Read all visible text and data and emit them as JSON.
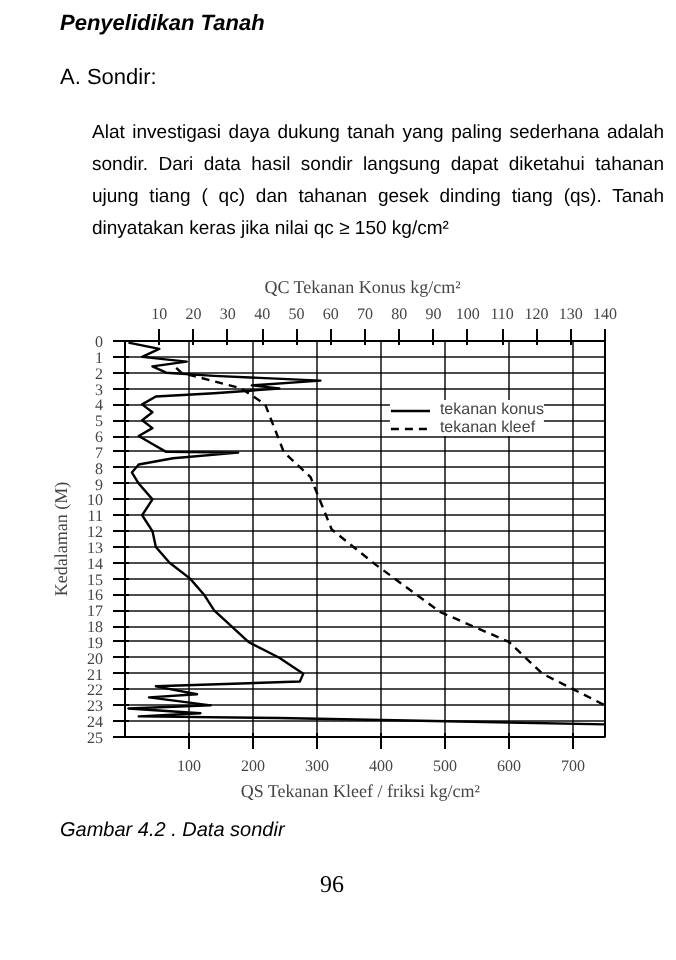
{
  "chart_data": {
    "type": "line",
    "title": "Penyelidikan Tanah",
    "subtitle": "A. Sondir:",
    "annotations": [
      "Alat investigasi daya dukung tanah yang paling sederhana adalah sondir. Dari data hasil sondir langsung dapat diketahui tahanan ujung tiang ( qc) dan tahanan gesek dinding tiang (qs). Tanah dinyatakan keras jika nilai qc ≥ 150 kg/cm²",
      "Gambar 4.2 . Data sondir",
      "96"
    ],
    "xlabel": "QS  Tekanan Kleef / friksi  kg/cm²",
    "x2label": "QC  Tekanan Konus kg/cm²",
    "ylabel": "Kedalaman (M)",
    "xlim": [
      0,
      750
    ],
    "xticks": [
      100,
      200,
      300,
      400,
      500,
      600,
      700
    ],
    "x2lim": [
      0,
      140
    ],
    "x2ticks": [
      10,
      20,
      30,
      40,
      50,
      60,
      70,
      80,
      90,
      100,
      110,
      120,
      130,
      140
    ],
    "ylim": [
      25,
      0
    ],
    "yticks": [
      0,
      1,
      2,
      3,
      4,
      5,
      6,
      7,
      8,
      9,
      10,
      11,
      12,
      13,
      14,
      15,
      16,
      17,
      18,
      19,
      20,
      21,
      22,
      23,
      24,
      25
    ],
    "grid": true,
    "legend": "top right",
    "marker": "none",
    "series": [
      {
        "name": "tekanan konus",
        "color": "#000000",
        "axis": "x2",
        "line_style": "solid",
        "x": [
          1,
          10,
          5,
          18,
          8,
          12,
          26,
          57,
          37,
          45,
          26,
          9,
          5,
          8,
          5,
          8,
          4,
          8,
          12,
          33,
          14,
          4,
          2,
          4,
          8,
          5,
          8,
          9,
          13,
          19,
          23,
          26,
          31,
          36,
          45,
          52,
          51,
          9,
          21,
          7,
          25,
          1,
          22,
          4,
          45,
          140
        ],
        "values": [
          0.1,
          0.5,
          1,
          1.3,
          1.6,
          2,
          2.2,
          2.5,
          2.8,
          3,
          3.3,
          3.5,
          4,
          4.5,
          5,
          5.5,
          6,
          6.5,
          7,
          7.05,
          7.4,
          7.8,
          8.3,
          9,
          10,
          11,
          12,
          13,
          14,
          15,
          16,
          17,
          18,
          19,
          20,
          21,
          21.5,
          21.8,
          22.3,
          22.5,
          23,
          23.2,
          23.5,
          23.7,
          23.8,
          24.2
        ]
      },
      {
        "name": "tekanan kleef",
        "color": "#000000",
        "line_style": "dashed",
        "x": [
          80,
          88,
          182,
          219,
          248,
          290,
          323,
          391,
          492,
          600,
          652,
          750
        ],
        "values": [
          1.7,
          2,
          3,
          4,
          7,
          8.6,
          11.9,
          14.1,
          17.1,
          19,
          21,
          23
        ]
      }
    ]
  }
}
